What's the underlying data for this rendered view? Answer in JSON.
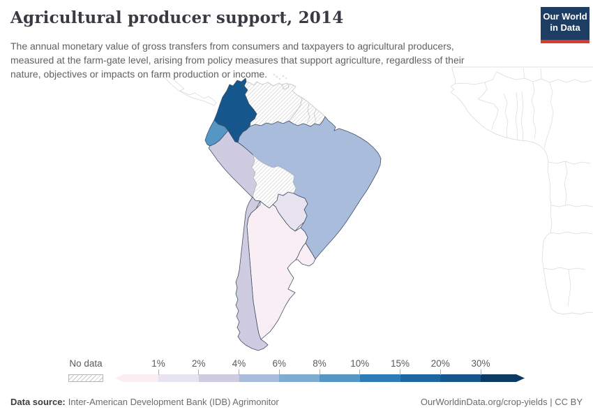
{
  "header": {
    "title": "Agricultural producer support, 2014",
    "subtitle_lines": [
      "The annual monetary value of gross transfers from consumers and taxpayers to agricultural producers,",
      "measured at the farm-gate level, arising from policy measures that support agriculture, regardless of their",
      "nature, objectives or impacts on farm production or income."
    ],
    "logo": {
      "line1": "Our World",
      "line2": "in Data"
    }
  },
  "colors": {
    "logo_background": "#1d3d63",
    "logo_accent": "#d73b32",
    "data_country_border": "#3f5265",
    "no_data_border": "#c0c0c0",
    "background_country_border": "#d6d6d6"
  },
  "legend": {
    "no_data_label": "No data",
    "tick_labels": [
      "1%",
      "2%",
      "4%",
      "6%",
      "8%",
      "10%",
      "15%",
      "20%",
      "30%"
    ]
  },
  "footer": {
    "source_label": "Data source:",
    "source_value": "Inter-American Development Bank (IDB) Agrimonitor",
    "credit": "OurWorldinData.org/crop-yields | CC BY"
  },
  "chart_data": {
    "type": "choropleth",
    "title": "Agricultural producer support, 2014",
    "year": 2014,
    "unit": "%",
    "region_focus": "South America",
    "buckets": [
      "<1%",
      "1-2%",
      "2-4%",
      "4-6%",
      "6-8%",
      "8-10%",
      "10-15%",
      "15-20%",
      "20-30%",
      ">30%"
    ],
    "bucket_colors": {
      "<1%": "#f9eef4",
      "1-2%": "#e7e3f0",
      "2-4%": "#cfcce2",
      "4-6%": "#aabcdc",
      "6-8%": "#7fadd2",
      "8-10%": "#5596c5",
      "10-15%": "#2d7cb5",
      "15-20%": "#1d669f",
      "20-30%": "#15578c",
      ">30%": "#0d3a62"
    },
    "no_data_key": "No data",
    "countries": {
      "Colombia": "20-30%",
      "Ecuador": "8-10%",
      "Brazil": "4-6%",
      "Peru": "2-4%",
      "Chile": "2-4%",
      "Paraguay": "1-2%",
      "Argentina": "<1%",
      "Uruguay": "<1%",
      "Venezuela": "No data",
      "Guyana": "No data",
      "Suriname": "No data",
      "French Guiana": "No data",
      "Bolivia": "No data",
      "Trinidad and Tobago": "No data"
    }
  }
}
